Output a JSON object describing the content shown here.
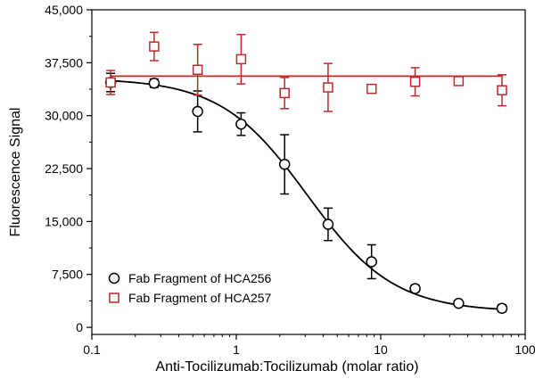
{
  "chart_data": {
    "type": "scatter",
    "title": "",
    "xlabel": "Anti-Tocilizumab:Tocilizumab (molar ratio)",
    "ylabel": "Fluorescence Signal",
    "x_scale": "log",
    "xlim": [
      0.1,
      100
    ],
    "ylim": [
      -1000,
      45000
    ],
    "x_ticks": [
      0.1,
      1,
      10,
      100
    ],
    "x_tick_labels": [
      "0.1",
      "1",
      "10",
      "100"
    ],
    "y_ticks": [
      0,
      7500,
      15000,
      22500,
      30000,
      37500,
      45000
    ],
    "y_tick_labels": [
      "0",
      "7,500",
      "15,000",
      "22,500",
      "30,000",
      "37,500",
      "45,000"
    ],
    "grid": false,
    "legend_position": "bottom-left",
    "series": [
      {
        "name": "Fab Fragment of HCA256",
        "marker": "circle",
        "color": "#000000",
        "x": [
          0.135,
          0.27,
          0.54,
          1.08,
          2.16,
          4.32,
          8.64,
          17.3,
          34.6,
          69.1
        ],
        "y": [
          34700,
          34600,
          30600,
          28800,
          23100,
          14600,
          9300,
          5500,
          3400,
          2700
        ],
        "err": [
          1300,
          600,
          2900,
          1600,
          4200,
          2300,
          2400,
          500,
          300,
          500
        ],
        "fit": {
          "type": "sigmoid",
          "top": 35300,
          "bottom": 2200,
          "ec50": 3.1,
          "hill": 1.45
        }
      },
      {
        "name": "Fab Fragment of HCA257",
        "marker": "square",
        "color": "#c0282a",
        "x": [
          0.135,
          0.27,
          0.54,
          1.08,
          2.16,
          4.32,
          8.64,
          17.3,
          34.6,
          69.1
        ],
        "y": [
          34700,
          39800,
          36500,
          38000,
          33200,
          34000,
          33800,
          34800,
          34900,
          33600
        ],
        "err": [
          1700,
          2000,
          3600,
          3500,
          2200,
          3400,
          500,
          2000,
          500,
          2200
        ],
        "fit": {
          "type": "constant",
          "value": 35600
        }
      }
    ]
  }
}
